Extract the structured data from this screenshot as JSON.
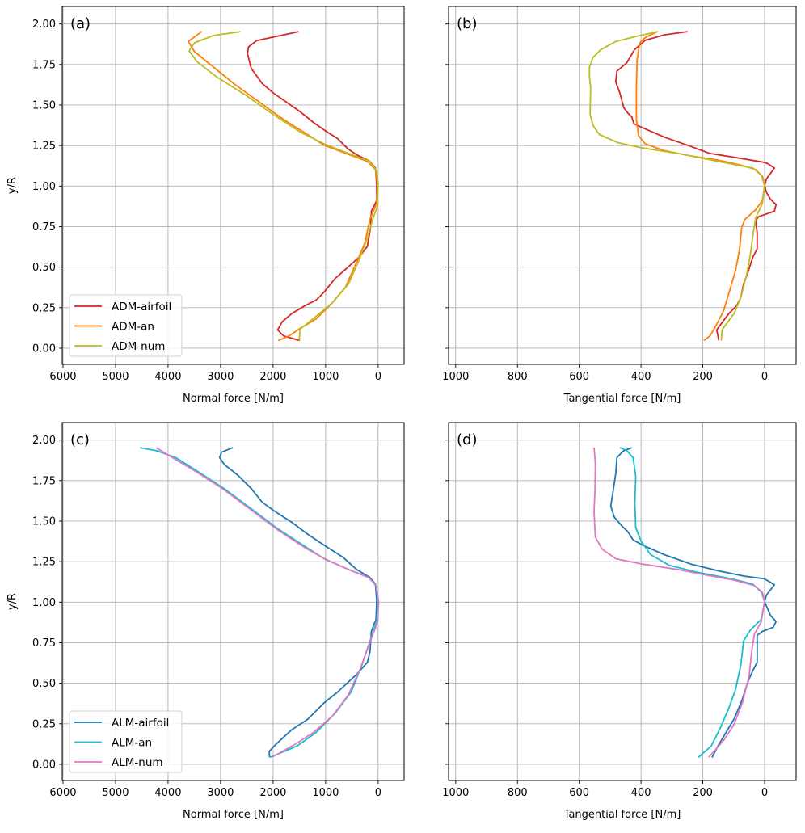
{
  "chart_data": [
    {
      "type": "line",
      "panel_label": "(a)",
      "xlabel": "Normal force [N/m]",
      "ylabel": "y/R",
      "xlim": [
        6015,
        -495
      ],
      "ylim": [
        -0.1,
        2.108
      ],
      "xticks": [
        6000,
        5000,
        4000,
        3000,
        2000,
        1000,
        0
      ],
      "xtick_labels": [
        "6000",
        "5000",
        "4000",
        "3000",
        "2000",
        "1000",
        "0"
      ],
      "yticks": [
        0,
        0.25,
        0.5,
        0.75,
        1.0,
        1.25,
        1.5,
        1.75,
        2.0
      ],
      "ytick_labels": [
        "0.00",
        "0.25",
        "0.50",
        "0.75",
        "1.00",
        "1.25",
        "1.50",
        "1.75",
        "2.00"
      ],
      "show_yticklabels": true,
      "grid": true,
      "legend": "lower-left",
      "series": [
        {
          "name": "ADM-airfoil",
          "color": "#d62728",
          "x": [
            1512,
            2314,
            2468,
            2488,
            2416,
            2211,
            2005,
            1748,
            1491,
            1234,
            977,
            771,
            566,
            411,
            154,
            51,
            26,
            26,
            129,
            144,
            206,
            360,
            617,
            823,
            1028,
            1183,
            1388,
            1645,
            1825,
            1913,
            1800,
            1491
          ],
          "y": [
            1.953,
            1.897,
            1.859,
            1.817,
            1.726,
            1.634,
            1.576,
            1.518,
            1.46,
            1.393,
            1.335,
            1.293,
            1.227,
            1.194,
            1.152,
            1.111,
            1.011,
            0.911,
            0.845,
            0.745,
            0.628,
            0.562,
            0.487,
            0.429,
            0.346,
            0.296,
            0.263,
            0.213,
            0.163,
            0.113,
            0.076,
            0.047
          ]
        },
        {
          "name": "ADM-an",
          "color": "#ff7f0e",
          "x": [
            3352,
            3614,
            3496,
            3136,
            2725,
            2262,
            1800,
            1388,
            1028,
            617,
            206,
            51,
            10,
            26,
            154,
            257,
            411,
            617,
            874,
            1183,
            1491,
            1697,
            1902
          ],
          "y": [
            1.955,
            1.892,
            1.829,
            1.734,
            1.626,
            1.518,
            1.41,
            1.327,
            1.252,
            1.202,
            1.152,
            1.102,
            1.011,
            0.894,
            0.795,
            0.645,
            0.529,
            0.379,
            0.279,
            0.18,
            0.121,
            0.076,
            0.047
          ]
        },
        {
          "name": "ADM-num",
          "color": "#bcbd22",
          "x": [
            2612,
            3136,
            3496,
            3599,
            3445,
            3085,
            2519,
            2005,
            1491,
            1028,
            566,
            154,
            26,
            0,
            10,
            103,
            206,
            360,
            566,
            874,
            1183,
            1491,
            1501
          ],
          "y": [
            1.953,
            1.929,
            1.884,
            1.834,
            1.767,
            1.676,
            1.56,
            1.443,
            1.335,
            1.26,
            1.202,
            1.152,
            1.094,
            1.011,
            0.878,
            0.795,
            0.678,
            0.545,
            0.396,
            0.279,
            0.196,
            0.116,
            0.047
          ]
        }
      ]
    },
    {
      "type": "line",
      "panel_label": "(b)",
      "xlabel": "Tangential force [N/m]",
      "ylabel": "",
      "xlim": [
        1023,
        -102
      ],
      "ylim": [
        -0.1,
        2.108
      ],
      "xticks": [
        1000,
        800,
        600,
        400,
        200,
        0
      ],
      "xtick_labels": [
        "1000",
        "800",
        "600",
        "400",
        "200",
        "0"
      ],
      "yticks": [
        0,
        0.25,
        0.5,
        0.75,
        1.0,
        1.25,
        1.5,
        1.75,
        2.0
      ],
      "ytick_labels": [],
      "show_yticklabels": false,
      "grid": true,
      "legend": "none",
      "series": [
        {
          "name": "ADM-airfoil",
          "color": "#d62728",
          "x": [
            249,
            325,
            386,
            421,
            447,
            478,
            482,
            469,
            456,
            443,
            430,
            423,
            395,
            325,
            238,
            178,
            72,
            3,
            -10,
            -32,
            -6,
            0,
            -6,
            -19,
            -37,
            -32,
            -6,
            20,
            29,
            24,
            24,
            38,
            55,
            68,
            77,
            90,
            116,
            142,
            155,
            148
          ],
          "y": [
            1.953,
            1.933,
            1.9,
            1.842,
            1.759,
            1.709,
            1.643,
            1.576,
            1.485,
            1.451,
            1.426,
            1.385,
            1.36,
            1.302,
            1.244,
            1.202,
            1.169,
            1.147,
            1.139,
            1.111,
            1.044,
            1.003,
            0.961,
            0.919,
            0.886,
            0.845,
            0.828,
            0.811,
            0.786,
            0.712,
            0.612,
            0.562,
            0.462,
            0.396,
            0.313,
            0.263,
            0.213,
            0.146,
            0.113,
            0.047
          ]
        },
        {
          "name": "ADM-an",
          "color": "#ff7f0e",
          "x": [
            347,
            386,
            404,
            413,
            415,
            415,
            408,
            386,
            325,
            238,
            151,
            72,
            29,
            7,
            0,
            7,
            29,
            64,
            74,
            81,
            94,
            112,
            133,
            160,
            177,
            196
          ],
          "y": [
            1.953,
            1.917,
            1.884,
            1.776,
            1.609,
            1.41,
            1.31,
            1.26,
            1.219,
            1.186,
            1.16,
            1.127,
            1.102,
            1.061,
            1.003,
            0.911,
            0.853,
            0.795,
            0.745,
            0.612,
            0.479,
            0.362,
            0.229,
            0.13,
            0.076,
            0.047
          ]
        },
        {
          "name": "ADM-num",
          "color": "#bcbd22",
          "x": [
            345,
            413,
            482,
            530,
            556,
            567,
            567,
            563,
            565,
            556,
            535,
            475,
            395,
            282,
            195,
            107,
            38,
            11,
            0,
            7,
            29,
            38,
            46,
            59,
            77,
            99,
            125,
            138,
            140
          ],
          "y": [
            1.953,
            1.925,
            1.892,
            1.842,
            1.792,
            1.734,
            1.676,
            1.609,
            1.443,
            1.377,
            1.318,
            1.268,
            1.235,
            1.202,
            1.169,
            1.136,
            1.111,
            1.069,
            1.003,
            0.894,
            0.803,
            0.695,
            0.579,
            0.446,
            0.313,
            0.213,
            0.146,
            0.113,
            0.047
          ]
        }
      ]
    },
    {
      "type": "line",
      "panel_label": "(c)",
      "xlabel": "Normal force [N/m]",
      "ylabel": "y/R",
      "xlim": [
        6015,
        -495
      ],
      "ylim": [
        -0.1,
        2.108
      ],
      "xticks": [
        6000,
        5000,
        4000,
        3000,
        2000,
        1000,
        0
      ],
      "xtick_labels": [
        "6000",
        "5000",
        "4000",
        "3000",
        "2000",
        "1000",
        "0"
      ],
      "yticks": [
        0,
        0.25,
        0.5,
        0.75,
        1.0,
        1.25,
        1.5,
        1.75,
        2.0
      ],
      "ytick_labels": [
        "0.00",
        "0.25",
        "0.50",
        "0.75",
        "1.00",
        "1.25",
        "1.50",
        "1.75",
        "2.00"
      ],
      "show_yticklabels": true,
      "grid": true,
      "legend": "lower-left",
      "series": [
        {
          "name": "ALM-airfoil",
          "color": "#1f77b4",
          "x": [
            2766,
            2982,
            3018,
            2931,
            2674,
            2416,
            2211,
            2005,
            1645,
            1337,
            1028,
            668,
            411,
            154,
            51,
            26,
            41,
            129,
            154,
            206,
            411,
            771,
            1028,
            1337,
            1645,
            1954,
            2072,
            2067
          ],
          "y": [
            1.953,
            1.925,
            1.892,
            1.85,
            1.784,
            1.701,
            1.618,
            1.568,
            1.493,
            1.418,
            1.352,
            1.277,
            1.202,
            1.152,
            1.111,
            1.011,
            0.894,
            0.82,
            0.695,
            0.628,
            0.554,
            0.446,
            0.379,
            0.279,
            0.213,
            0.121,
            0.08,
            0.043
          ]
        },
        {
          "name": "ALM-an",
          "color": "#17becf",
          "x": [
            4535,
            4216,
            3856,
            3445,
            2931,
            2416,
            1902,
            1388,
            1028,
            566,
            180,
            41,
            0,
            26,
            154,
            308,
            514,
            823,
            1183,
            1542,
            2056
          ],
          "y": [
            1.953,
            1.934,
            1.892,
            1.809,
            1.701,
            1.576,
            1.451,
            1.343,
            1.268,
            1.202,
            1.152,
            1.102,
            1.003,
            0.878,
            0.761,
            0.612,
            0.446,
            0.313,
            0.196,
            0.113,
            0.043
          ]
        },
        {
          "name": "ALM-num",
          "color": "#e377c2",
          "x": [
            4226,
            3959,
            3445,
            2931,
            2416,
            1902,
            1388,
            977,
            566,
            180,
            36,
            -10,
            10,
            164,
            334,
            566,
            874,
            1234,
            1594,
            2005
          ],
          "y": [
            1.953,
            1.9,
            1.801,
            1.693,
            1.568,
            1.443,
            1.335,
            1.26,
            1.202,
            1.152,
            1.102,
            1.003,
            0.878,
            0.745,
            0.595,
            0.429,
            0.296,
            0.196,
            0.121,
            0.047
          ]
        }
      ]
    },
    {
      "type": "line",
      "panel_label": "(d)",
      "xlabel": "Tangential force [N/m]",
      "ylabel": "",
      "xlim": [
        1023,
        -102
      ],
      "ylim": [
        -0.1,
        2.108
      ],
      "xticks": [
        1000,
        800,
        600,
        400,
        200,
        0
      ],
      "xtick_labels": [
        "1000",
        "800",
        "600",
        "400",
        "200",
        "0"
      ],
      "yticks": [
        0,
        0.25,
        0.5,
        0.75,
        1.0,
        1.25,
        1.5,
        1.75,
        2.0
      ],
      "ytick_labels": [],
      "show_yticklabels": false,
      "grid": true,
      "legend": "none",
      "series": [
        {
          "name": "ALM-airfoil",
          "color": "#1f77b4",
          "x": [
            430,
            456,
            478,
            482,
            491,
            498,
            487,
            461,
            443,
            426,
            395,
            325,
            238,
            151,
            64,
            1,
            -15,
            -32,
            -6,
            0,
            -19,
            -37,
            -28,
            7,
            24,
            24,
            38,
            55,
            73,
            99,
            125,
            151,
            170
          ],
          "y": [
            1.953,
            1.934,
            1.892,
            1.792,
            1.676,
            1.593,
            1.526,
            1.468,
            1.435,
            1.385,
            1.352,
            1.293,
            1.235,
            1.194,
            1.16,
            1.144,
            1.127,
            1.107,
            1.044,
            1.003,
            0.919,
            0.881,
            0.845,
            0.82,
            0.795,
            0.628,
            0.579,
            0.504,
            0.396,
            0.279,
            0.196,
            0.113,
            0.042
          ]
        },
        {
          "name": "ALM-an",
          "color": "#17becf",
          "x": [
            468,
            447,
            426,
            417,
            420,
            417,
            400,
            369,
            308,
            221,
            107,
            38,
            10,
            0,
            11,
            46,
            68,
            77,
            94,
            116,
            142,
            173,
            214
          ],
          "y": [
            1.953,
            1.937,
            1.892,
            1.776,
            1.609,
            1.46,
            1.377,
            1.293,
            1.227,
            1.186,
            1.144,
            1.111,
            1.061,
            1.003,
            0.894,
            0.828,
            0.761,
            0.612,
            0.462,
            0.346,
            0.229,
            0.113,
            0.043
          ]
        },
        {
          "name": "ALM-num",
          "color": "#e377c2",
          "x": [
            552,
            548,
            549,
            552,
            548,
            526,
            482,
            395,
            282,
            195,
            99,
            33,
            7,
            0,
            11,
            33,
            42,
            50,
            72,
            99,
            133,
            181
          ],
          "y": [
            1.953,
            1.859,
            1.693,
            1.559,
            1.401,
            1.327,
            1.268,
            1.235,
            1.202,
            1.169,
            1.136,
            1.102,
            1.061,
            1.003,
            0.878,
            0.803,
            0.695,
            0.545,
            0.379,
            0.246,
            0.146,
            0.043
          ]
        }
      ]
    }
  ]
}
